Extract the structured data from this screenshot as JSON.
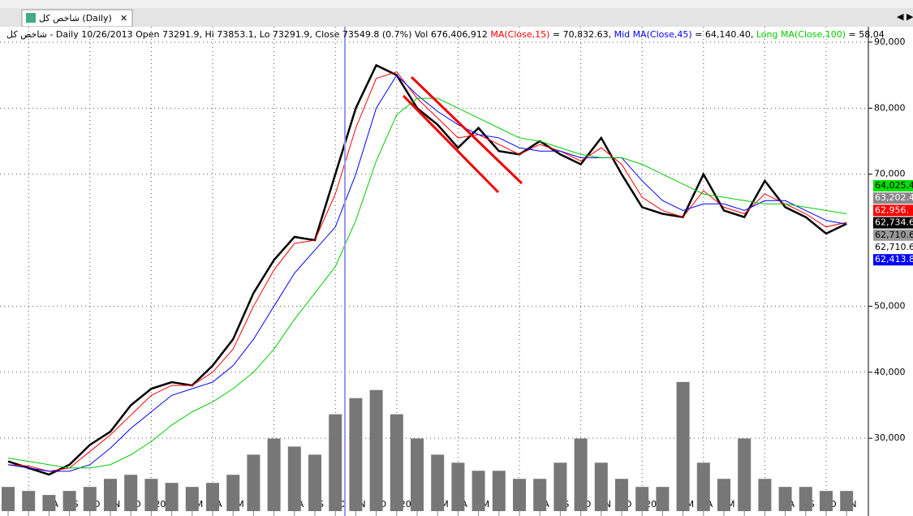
{
  "tab_title": "شاخص کل (Daily)",
  "chart_data": {
    "type": "line",
    "info": "شاخص کل - Daily 10/26/2013 Open 73291.9, Hi 73853.1, Lo 73291.9, Close 73549.8 (0.7%) Vol 676,406,912",
    "categories": [
      "J",
      "J",
      "A",
      "S",
      "O",
      "N",
      "D",
      "2013",
      null,
      "M",
      "A",
      "M",
      "J",
      "J",
      "A",
      "S",
      "O",
      "N",
      "D",
      "2014",
      null,
      "M",
      "A",
      "M",
      "J",
      "J",
      "A",
      "S",
      "O",
      "N",
      "D",
      "2015",
      null,
      "M",
      "A",
      "M",
      "J",
      "J",
      "A",
      "S",
      "O",
      "N"
    ],
    "ylim": [
      18960,
      92330
    ],
    "yticks": [
      {
        "value": 30000,
        "label": "30,000"
      },
      {
        "value": 40000,
        "label": "40,000"
      },
      {
        "value": 50000,
        "label": "50,000"
      },
      {
        "value": 70000,
        "label": "70,000"
      },
      {
        "value": 80000,
        "label": "80,000"
      },
      {
        "value": 90000,
        "label": "90,000"
      }
    ],
    "y2lim": [
      0,
      6000000000
    ],
    "grid": true,
    "series": [
      {
        "color": "#000000",
        "values": [
          26500,
          25500,
          24500,
          26000,
          29000,
          31000,
          35000,
          37500,
          38500,
          38000,
          41000,
          45000,
          52000,
          57000,
          60500,
          60000,
          70000,
          80000,
          86500,
          85000,
          80000,
          77500,
          74000,
          77000,
          73500,
          73000,
          75000,
          73000,
          71500,
          75500,
          70000,
          65000,
          64000,
          63500,
          70000,
          64500,
          63500,
          69000,
          65000,
          63500,
          61000,
          62500
        ]
      },
      {
        "name": "MA(Close,15)",
        "header_value": " = 70,832.63, ",
        "color": "#ff0000",
        "values": [
          26000,
          25800,
          25000,
          25500,
          28000,
          30500,
          33500,
          36500,
          38000,
          38000,
          40000,
          43500,
          50000,
          55500,
          59500,
          60000,
          67000,
          77000,
          84500,
          85500,
          81500,
          78500,
          75500,
          76000,
          74500,
          73000,
          74500,
          73500,
          72000,
          74000,
          71500,
          66500,
          64500,
          63500,
          67500,
          65000,
          64000,
          67000,
          65500,
          64000,
          62000,
          62700
        ]
      },
      {
        "name": "Mid MA(Close,45)",
        "header_value": " = 64,140.40, ",
        "color": "#0000ff",
        "values": [
          26000,
          25500,
          25000,
          25000,
          26000,
          28500,
          31500,
          34000,
          36500,
          37500,
          38500,
          41000,
          45000,
          50000,
          55000,
          58500,
          62000,
          70000,
          80000,
          85000,
          82000,
          79500,
          77500,
          76000,
          75500,
          74000,
          73500,
          73500,
          72500,
          72500,
          72500,
          69000,
          66000,
          64500,
          65500,
          65500,
          64500,
          66000,
          66000,
          64500,
          63000,
          62400
        ]
      },
      {
        "name": "Long MA(Close,100)",
        "header_value": " = 58,04",
        "color": "#00cc00",
        "values": [
          27000,
          26500,
          26000,
          25500,
          25500,
          26000,
          27500,
          29500,
          32000,
          34000,
          35500,
          37500,
          40000,
          43500,
          48000,
          52000,
          56000,
          63000,
          72000,
          79000,
          81500,
          81500,
          80000,
          78500,
          77000,
          75500,
          75000,
          74000,
          73000,
          72500,
          72500,
          71500,
          70000,
          68500,
          67000,
          66500,
          66000,
          65500,
          65500,
          65000,
          64500,
          64000
        ]
      },
      {
        "type": "bar",
        "axis": "y2",
        "color": "#777777",
        "values": [
          300000000,
          250000000,
          200000000,
          250000000,
          300000000,
          400000000,
          450000000,
          400000000,
          350000000,
          300000000,
          350000000,
          450000000,
          700000000,
          900000000,
          800000000,
          700000000,
          1200000000,
          1400000000,
          1500000000,
          1200000000,
          900000000,
          700000000,
          600000000,
          500000000,
          500000000,
          400000000,
          400000000,
          600000000,
          900000000,
          600000000,
          400000000,
          300000000,
          300000000,
          1600000000,
          600000000,
          400000000,
          900000000,
          400000000,
          300000000,
          300000000,
          250000000,
          250000000
        ]
      }
    ],
    "price_tags": [
      {
        "label": "64,025.4",
        "color": "#00dd00"
      },
      {
        "label": "63,202.4",
        "color": "#888888"
      },
      {
        "label": "62,956.",
        "color": "#ff0000"
      },
      {
        "label": "62,734.6",
        "color": "#000000"
      },
      {
        "label": "62,710.6",
        "color": "#999999"
      },
      {
        "label": "62,710.6",
        "color": "#ffffff"
      },
      {
        "label": "62,413.8",
        "color": "#0000ff"
      }
    ]
  }
}
